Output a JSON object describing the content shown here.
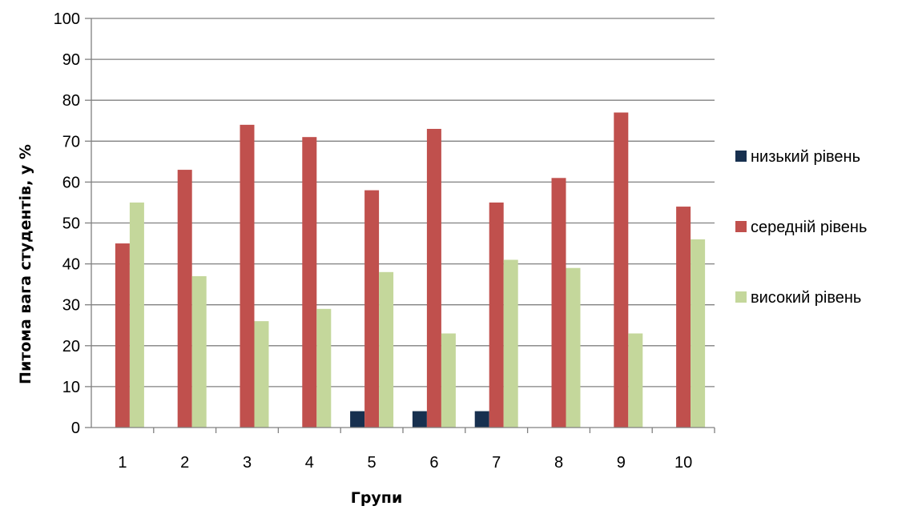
{
  "chart_data": {
    "type": "bar",
    "title": "",
    "xlabel": "Групи",
    "ylabel": "Питома вага студентів, у %",
    "ylim": [
      0,
      100
    ],
    "ytick_step": 10,
    "grid": true,
    "legend_position": "right",
    "categories": [
      "1",
      "2",
      "3",
      "4",
      "5",
      "6",
      "7",
      "8",
      "9",
      "10"
    ],
    "series": [
      {
        "name": "низький рівень",
        "color": "#17304f",
        "values": [
          0,
          0,
          0,
          0,
          4,
          4,
          4,
          0,
          0,
          0
        ]
      },
      {
        "name": "середній рівень",
        "color": "#c0504d",
        "values": [
          45,
          63,
          74,
          71,
          58,
          73,
          55,
          61,
          77,
          54
        ]
      },
      {
        "name": "високий рівень",
        "color": "#c4d79b",
        "values": [
          55,
          37,
          26,
          29,
          38,
          23,
          41,
          39,
          23,
          46
        ]
      }
    ]
  }
}
